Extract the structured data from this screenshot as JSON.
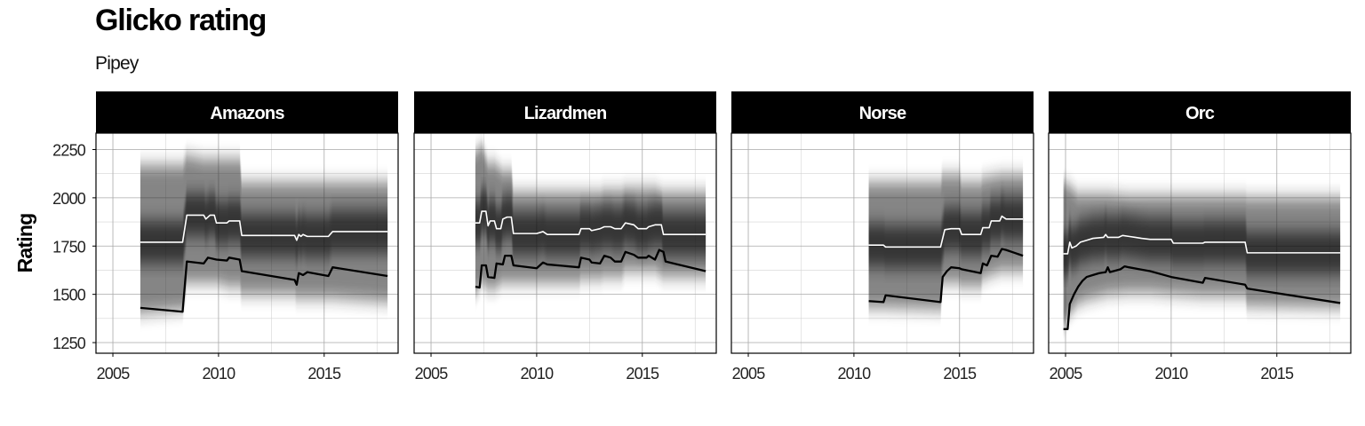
{
  "title": "Glicko rating",
  "subtitle": "Pipey",
  "chart_data": {
    "type": "line",
    "title": "Glicko rating",
    "subtitle": "Pipey",
    "ylabel": "Rating",
    "xlabel": "",
    "xlim": [
      2004.2,
      2018.5
    ],
    "ylim": [
      1195,
      2335
    ],
    "xticks": [
      2005,
      2010,
      2015
    ],
    "yticks": [
      1250,
      1500,
      1750,
      2000,
      2250
    ],
    "grid": true,
    "facets": [
      {
        "name": "Amazons",
        "rating": [
          [
            2006.3,
            1770
          ],
          [
            2008.3,
            1770
          ],
          [
            2008.5,
            1910
          ],
          [
            2009.3,
            1910
          ],
          [
            2009.4,
            1890
          ],
          [
            2009.6,
            1910
          ],
          [
            2009.8,
            1910
          ],
          [
            2009.9,
            1870
          ],
          [
            2010.4,
            1870
          ],
          [
            2010.5,
            1880
          ],
          [
            2011.0,
            1880
          ],
          [
            2011.1,
            1805
          ],
          [
            2013.6,
            1805
          ],
          [
            2013.7,
            1780
          ],
          [
            2013.8,
            1810
          ],
          [
            2013.9,
            1800
          ],
          [
            2014.0,
            1810
          ],
          [
            2014.2,
            1800
          ],
          [
            2015.2,
            1800
          ],
          [
            2015.4,
            1825
          ],
          [
            2018.0,
            1825
          ]
        ],
        "lower": [
          [
            2006.3,
            1430
          ],
          [
            2008.3,
            1410
          ],
          [
            2008.5,
            1670
          ],
          [
            2009.3,
            1660
          ],
          [
            2009.5,
            1690
          ],
          [
            2009.9,
            1680
          ],
          [
            2010.4,
            1675
          ],
          [
            2010.5,
            1690
          ],
          [
            2011.0,
            1680
          ],
          [
            2011.1,
            1620
          ],
          [
            2013.6,
            1575
          ],
          [
            2013.7,
            1550
          ],
          [
            2013.8,
            1610
          ],
          [
            2014.0,
            1600
          ],
          [
            2014.2,
            1615
          ],
          [
            2015.2,
            1595
          ],
          [
            2015.4,
            1640
          ],
          [
            2018.0,
            1595
          ]
        ],
        "band": [
          [
            2006.3,
            2170,
            1400
          ],
          [
            2008.3,
            2170,
            1420
          ],
          [
            2008.5,
            2220,
            1560
          ],
          [
            2009.3,
            2200,
            1560
          ],
          [
            2009.9,
            2200,
            1560
          ],
          [
            2010.5,
            2200,
            1540
          ],
          [
            2011.0,
            2200,
            1540
          ],
          [
            2011.1,
            2080,
            1500
          ],
          [
            2013.6,
            2080,
            1500
          ],
          [
            2013.7,
            2080,
            1480
          ],
          [
            2014.2,
            2080,
            1480
          ],
          [
            2015.2,
            2080,
            1480
          ],
          [
            2015.4,
            2080,
            1480
          ],
          [
            2018.0,
            2080,
            1460
          ]
        ]
      },
      {
        "name": "Lizardmen",
        "rating": [
          [
            2007.1,
            1870
          ],
          [
            2007.3,
            1870
          ],
          [
            2007.4,
            1930
          ],
          [
            2007.6,
            1930
          ],
          [
            2007.7,
            1855
          ],
          [
            2007.8,
            1880
          ],
          [
            2008.0,
            1880
          ],
          [
            2008.1,
            1840
          ],
          [
            2008.3,
            1840
          ],
          [
            2008.4,
            1890
          ],
          [
            2008.6,
            1900
          ],
          [
            2008.8,
            1900
          ],
          [
            2008.9,
            1815
          ],
          [
            2010.0,
            1815
          ],
          [
            2010.3,
            1825
          ],
          [
            2010.5,
            1810
          ],
          [
            2012.0,
            1810
          ],
          [
            2012.1,
            1840
          ],
          [
            2012.5,
            1840
          ],
          [
            2012.6,
            1830
          ],
          [
            2013.0,
            1840
          ],
          [
            2013.2,
            1850
          ],
          [
            2013.5,
            1850
          ],
          [
            2013.7,
            1840
          ],
          [
            2014.0,
            1840
          ],
          [
            2014.2,
            1870
          ],
          [
            2014.6,
            1860
          ],
          [
            2014.8,
            1840
          ],
          [
            2015.2,
            1840
          ],
          [
            2015.3,
            1850
          ],
          [
            2015.6,
            1860
          ],
          [
            2015.9,
            1860
          ],
          [
            2016.0,
            1810
          ],
          [
            2018.0,
            1810
          ]
        ],
        "lower": [
          [
            2007.1,
            1540
          ],
          [
            2007.3,
            1535
          ],
          [
            2007.4,
            1650
          ],
          [
            2007.6,
            1650
          ],
          [
            2007.7,
            1590
          ],
          [
            2008.0,
            1585
          ],
          [
            2008.1,
            1660
          ],
          [
            2008.4,
            1655
          ],
          [
            2008.5,
            1700
          ],
          [
            2008.8,
            1700
          ],
          [
            2008.9,
            1650
          ],
          [
            2010.0,
            1635
          ],
          [
            2010.3,
            1665
          ],
          [
            2010.5,
            1655
          ],
          [
            2012.0,
            1640
          ],
          [
            2012.1,
            1690
          ],
          [
            2012.5,
            1680
          ],
          [
            2012.6,
            1665
          ],
          [
            2013.0,
            1660
          ],
          [
            2013.2,
            1700
          ],
          [
            2013.5,
            1690
          ],
          [
            2013.7,
            1670
          ],
          [
            2014.0,
            1670
          ],
          [
            2014.2,
            1720
          ],
          [
            2014.6,
            1705
          ],
          [
            2014.8,
            1690
          ],
          [
            2015.2,
            1690
          ],
          [
            2015.3,
            1700
          ],
          [
            2015.6,
            1680
          ],
          [
            2015.8,
            1730
          ],
          [
            2016.0,
            1720
          ],
          [
            2016.1,
            1670
          ],
          [
            2018.0,
            1620
          ]
        ],
        "band": [
          [
            2007.1,
            2240,
            1500
          ],
          [
            2007.4,
            2270,
            1560
          ],
          [
            2007.7,
            2180,
            1530
          ],
          [
            2008.0,
            2180,
            1530
          ],
          [
            2008.4,
            2140,
            1560
          ],
          [
            2008.8,
            2140,
            1560
          ],
          [
            2008.9,
            2030,
            1560
          ],
          [
            2010.0,
            2030,
            1560
          ],
          [
            2012.0,
            2030,
            1560
          ],
          [
            2012.1,
            2030,
            1580
          ],
          [
            2013.0,
            2030,
            1580
          ],
          [
            2013.2,
            2040,
            1590
          ],
          [
            2014.0,
            2040,
            1590
          ],
          [
            2014.2,
            2050,
            1620
          ],
          [
            2015.3,
            2050,
            1620
          ],
          [
            2015.6,
            2050,
            1620
          ],
          [
            2016.0,
            2030,
            1590
          ],
          [
            2018.0,
            2030,
            1590
          ]
        ]
      },
      {
        "name": "Norse",
        "rating": [
          [
            2010.7,
            1755
          ],
          [
            2011.4,
            1755
          ],
          [
            2011.5,
            1745
          ],
          [
            2014.1,
            1745
          ],
          [
            2014.3,
            1835
          ],
          [
            2014.6,
            1840
          ],
          [
            2015.0,
            1840
          ],
          [
            2015.1,
            1810
          ],
          [
            2016.0,
            1810
          ],
          [
            2016.1,
            1845
          ],
          [
            2016.4,
            1845
          ],
          [
            2016.5,
            1880
          ],
          [
            2016.9,
            1880
          ],
          [
            2017.0,
            1905
          ],
          [
            2017.2,
            1890
          ],
          [
            2018.0,
            1890
          ]
        ],
        "lower": [
          [
            2010.7,
            1465
          ],
          [
            2011.4,
            1460
          ],
          [
            2011.5,
            1495
          ],
          [
            2014.1,
            1460
          ],
          [
            2014.2,
            1590
          ],
          [
            2014.4,
            1620
          ],
          [
            2014.6,
            1640
          ],
          [
            2015.0,
            1635
          ],
          [
            2015.1,
            1630
          ],
          [
            2016.0,
            1610
          ],
          [
            2016.1,
            1660
          ],
          [
            2016.3,
            1650
          ],
          [
            2016.5,
            1700
          ],
          [
            2016.8,
            1695
          ],
          [
            2017.0,
            1735
          ],
          [
            2017.2,
            1730
          ],
          [
            2018.0,
            1700
          ]
        ],
        "band": [
          [
            2010.7,
            2080,
            1430
          ],
          [
            2011.4,
            2080,
            1430
          ],
          [
            2011.5,
            2080,
            1430
          ],
          [
            2014.1,
            2080,
            1420
          ],
          [
            2014.2,
            2120,
            1560
          ],
          [
            2015.0,
            2120,
            1560
          ],
          [
            2015.1,
            2080,
            1540
          ],
          [
            2016.0,
            2080,
            1540
          ],
          [
            2016.1,
            2100,
            1580
          ],
          [
            2016.5,
            2110,
            1600
          ],
          [
            2017.0,
            2120,
            1620
          ],
          [
            2018.0,
            2120,
            1620
          ]
        ]
      },
      {
        "name": "Orc",
        "rating": [
          [
            2004.9,
            1710
          ],
          [
            2005.1,
            1710
          ],
          [
            2005.2,
            1770
          ],
          [
            2005.3,
            1740
          ],
          [
            2005.5,
            1750
          ],
          [
            2005.7,
            1770
          ],
          [
            2006.0,
            1780
          ],
          [
            2006.3,
            1790
          ],
          [
            2006.8,
            1795
          ],
          [
            2006.9,
            1810
          ],
          [
            2007.0,
            1795
          ],
          [
            2007.5,
            1795
          ],
          [
            2007.7,
            1805
          ],
          [
            2008.0,
            1800
          ],
          [
            2008.3,
            1795
          ],
          [
            2008.6,
            1790
          ],
          [
            2009.0,
            1785
          ],
          [
            2010.0,
            1785
          ],
          [
            2010.1,
            1765
          ],
          [
            2011.5,
            1765
          ],
          [
            2011.6,
            1770
          ],
          [
            2013.5,
            1770
          ],
          [
            2013.6,
            1715
          ],
          [
            2018.0,
            1715
          ]
        ],
        "lower": [
          [
            2004.9,
            1320
          ],
          [
            2005.1,
            1320
          ],
          [
            2005.2,
            1450
          ],
          [
            2005.4,
            1500
          ],
          [
            2005.6,
            1540
          ],
          [
            2005.8,
            1570
          ],
          [
            2006.0,
            1590
          ],
          [
            2006.3,
            1600
          ],
          [
            2006.6,
            1610
          ],
          [
            2006.9,
            1615
          ],
          [
            2007.0,
            1640
          ],
          [
            2007.1,
            1615
          ],
          [
            2007.6,
            1630
          ],
          [
            2007.8,
            1645
          ],
          [
            2008.0,
            1640
          ],
          [
            2008.5,
            1630
          ],
          [
            2009.0,
            1620
          ],
          [
            2010.0,
            1590
          ],
          [
            2011.5,
            1560
          ],
          [
            2011.6,
            1585
          ],
          [
            2013.5,
            1550
          ],
          [
            2013.6,
            1530
          ],
          [
            2018.0,
            1455
          ]
        ],
        "band": [
          [
            2004.9,
            2080,
            1330
          ],
          [
            2005.2,
            2060,
            1400
          ],
          [
            2005.6,
            2020,
            1450
          ],
          [
            2006.0,
            2020,
            1470
          ],
          [
            2007.0,
            2020,
            1500
          ],
          [
            2008.0,
            2010,
            1510
          ],
          [
            2009.0,
            2010,
            1510
          ],
          [
            2010.0,
            2010,
            1500
          ],
          [
            2011.5,
            2010,
            1490
          ],
          [
            2013.5,
            2010,
            1490
          ],
          [
            2013.6,
            2000,
            1440
          ],
          [
            2018.0,
            2000,
            1430
          ]
        ]
      }
    ]
  }
}
